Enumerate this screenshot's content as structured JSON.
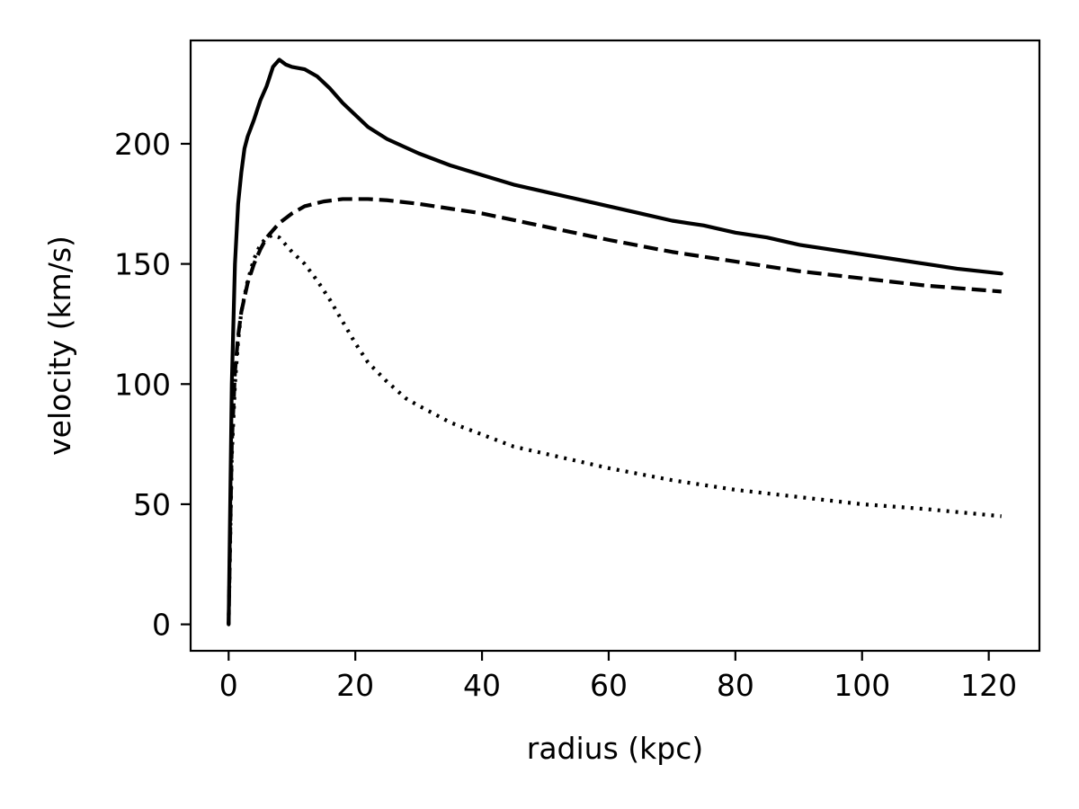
{
  "chart_data": {
    "type": "line",
    "title": "",
    "xlabel": "radius (kpc)",
    "ylabel": "velocity (km/s)",
    "xlim": [
      -6,
      128
    ],
    "ylim": [
      -11,
      243
    ],
    "xticks": [
      0,
      20,
      40,
      60,
      80,
      100,
      120
    ],
    "yticks": [
      0,
      50,
      100,
      150,
      200
    ],
    "xtick_labels": [
      "0",
      "20",
      "40",
      "60",
      "80",
      "100",
      "120"
    ],
    "ytick_labels": [
      "0",
      "50",
      "100",
      "150",
      "200"
    ],
    "grid": false,
    "legend": "none",
    "series": [
      {
        "style": "solid",
        "color": "#000000",
        "x": [
          0,
          0.5,
          1,
          1.5,
          2,
          2.5,
          3,
          4,
          5,
          6,
          7,
          8,
          9,
          10,
          12,
          14,
          16,
          18,
          20,
          22,
          25,
          30,
          35,
          40,
          45,
          50,
          55,
          60,
          65,
          70,
          75,
          80,
          85,
          90,
          95,
          100,
          105,
          110,
          115,
          122
        ],
        "y": [
          0,
          100,
          150,
          175,
          188,
          198,
          203,
          210,
          218,
          224,
          232,
          235,
          233,
          232,
          231,
          228,
          223,
          217,
          212,
          207,
          202,
          196,
          191,
          187,
          183,
          180,
          177,
          174,
          171,
          168,
          166,
          163,
          161,
          158,
          156,
          154,
          152,
          150,
          148,
          146
        ]
      },
      {
        "style": "dashed",
        "color": "#000000",
        "x": [
          0,
          0.5,
          1,
          1.5,
          2,
          3,
          4,
          5,
          6,
          8,
          10,
          12,
          15,
          18,
          20,
          22,
          25,
          30,
          35,
          40,
          50,
          60,
          70,
          80,
          90,
          100,
          110,
          122
        ],
        "y": [
          0,
          75,
          105,
          120,
          130,
          142,
          150,
          156,
          161,
          167,
          171,
          174,
          176,
          177,
          177,
          177,
          176.5,
          175,
          173,
          171,
          165.5,
          160,
          155,
          151,
          147,
          144,
          141,
          138.5
        ]
      },
      {
        "style": "dotted",
        "color": "#000000",
        "x": [
          0,
          0.5,
          1,
          1.5,
          2,
          3,
          4,
          5,
          6,
          7,
          8,
          10,
          12,
          14,
          16,
          18,
          20,
          22,
          25,
          28,
          30,
          35,
          40,
          45,
          50,
          55,
          60,
          70,
          80,
          90,
          100,
          110,
          122
        ],
        "y": [
          0,
          70,
          100,
          118,
          130,
          143,
          152,
          158,
          161,
          162,
          161,
          155,
          150,
          143,
          135,
          126,
          117,
          109,
          101,
          94,
          91,
          84,
          79,
          74,
          71,
          68,
          65,
          60,
          56,
          53,
          50,
          48,
          45
        ]
      }
    ]
  }
}
